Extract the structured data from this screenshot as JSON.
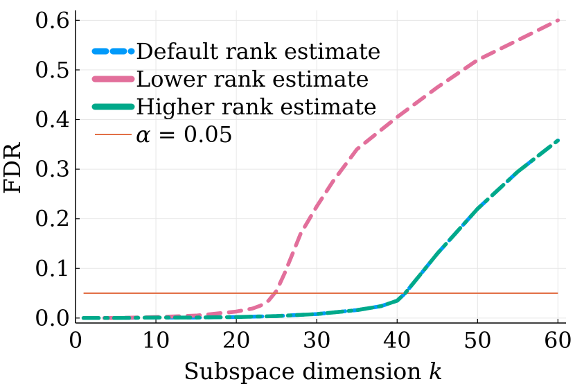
{
  "chart_data": {
    "type": "line",
    "title": "",
    "xlabel": "Subspace dimension k",
    "xlabel_text": "Subspace dimension ",
    "xlabel_var": "k",
    "ylabel": "FDR",
    "xlim": [
      0,
      61
    ],
    "ylim": [
      -0.01,
      0.62
    ],
    "xticks": [
      0,
      10,
      20,
      30,
      40,
      50,
      60
    ],
    "yticks": [
      0.0,
      0.1,
      0.2,
      0.3,
      0.4,
      0.5,
      0.6
    ],
    "xtick_labels": [
      "0",
      "10",
      "20",
      "30",
      "40",
      "50",
      "60"
    ],
    "ytick_labels": [
      "0.0",
      "0.1",
      "0.2",
      "0.3",
      "0.4",
      "0.5",
      "0.6"
    ],
    "grid": true,
    "legend_position": "top-left",
    "series": [
      {
        "name": "Default rank estimate",
        "color": "#009AFA",
        "style": "dashed",
        "x": [
          1,
          5,
          10,
          15,
          20,
          25,
          30,
          35,
          38,
          40,
          41,
          43,
          45,
          50,
          55,
          60
        ],
        "y": [
          0.0,
          0.0,
          0.001,
          0.001,
          0.002,
          0.004,
          0.008,
          0.016,
          0.024,
          0.035,
          0.05,
          0.09,
          0.13,
          0.22,
          0.295,
          0.358
        ]
      },
      {
        "name": "Lower rank estimate",
        "color": "#E26F9B",
        "style": "dashed",
        "x": [
          1,
          5,
          10,
          15,
          20,
          22,
          23,
          24,
          25,
          26,
          27,
          28,
          30,
          32,
          35,
          40,
          45,
          50,
          55,
          60
        ],
        "y": [
          0.0,
          0.0,
          0.002,
          0.005,
          0.013,
          0.019,
          0.025,
          0.035,
          0.055,
          0.09,
          0.13,
          0.17,
          0.225,
          0.275,
          0.34,
          0.405,
          0.465,
          0.52,
          0.56,
          0.6
        ]
      },
      {
        "name": "Higher rank estimate",
        "color": "#00A98A",
        "style": "dash-dot",
        "x": [
          1,
          5,
          10,
          15,
          20,
          25,
          30,
          35,
          38,
          40,
          41,
          43,
          45,
          50,
          55,
          60
        ],
        "y": [
          0.0,
          0.0,
          0.001,
          0.001,
          0.002,
          0.004,
          0.008,
          0.016,
          0.024,
          0.035,
          0.05,
          0.09,
          0.13,
          0.22,
          0.295,
          0.358
        ]
      },
      {
        "name": "α = 0.05",
        "legend_var": "α",
        "legend_rest": " = 0.05",
        "color": "#E26F46",
        "style": "solid",
        "x": [
          1,
          60
        ],
        "y": [
          0.05,
          0.05
        ]
      }
    ]
  }
}
